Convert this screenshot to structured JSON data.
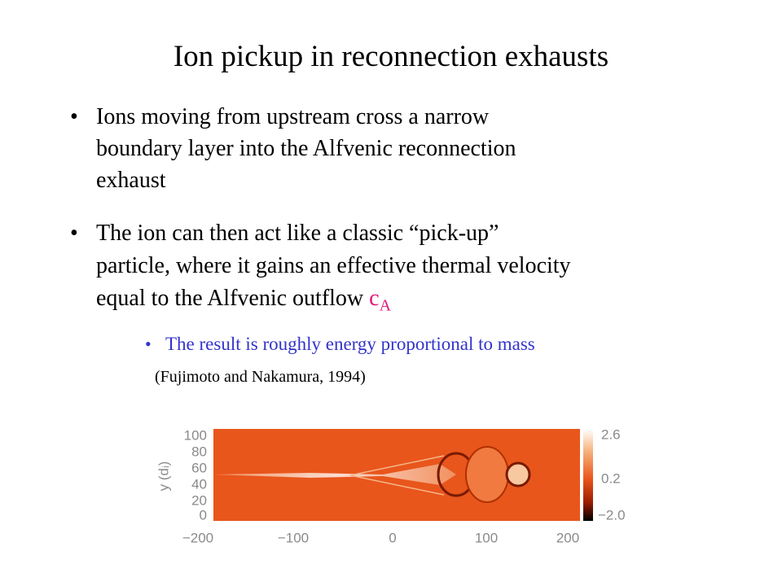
{
  "title": "Ion pickup in reconnection exhausts",
  "bullets": [
    {
      "lines": [
        "Ions moving from upstream cross a narrow",
        "boundary layer into the Alfvenic reconnection",
        "exhaust"
      ]
    },
    {
      "lines": [
        "The ion can then act like a classic “pick-up”",
        "particle, where it gains an effective thermal velocity",
        "equal to the Alfvenic outflow"
      ],
      "symbol": "c",
      "subscript": "A"
    }
  ],
  "sub_bullet": {
    "text": "The result is roughly energy proportional to mass",
    "citation": "(Fujimoto and Nakamura, 1994)"
  },
  "figure": {
    "y_label": "y (dᵢ)",
    "y_ticks": [
      "100",
      "80",
      "60",
      "40",
      "20",
      "0"
    ],
    "x_ticks": [
      "−200",
      "−100",
      "0",
      "100",
      "200"
    ],
    "colorbar_ticks": [
      "2.6",
      "0.2",
      "−2.0"
    ]
  }
}
